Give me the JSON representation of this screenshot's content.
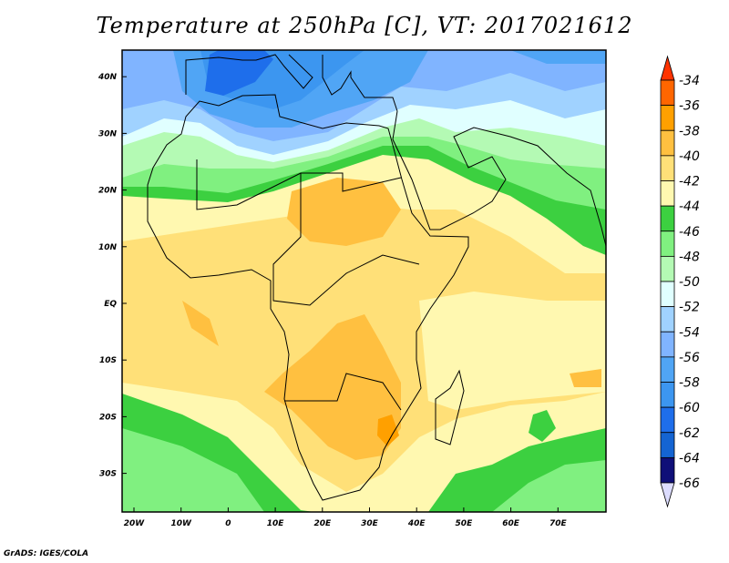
{
  "title": "Temperature at 250hPa [C], VT: 2017021612",
  "footer": "GrADS: IGES/COLA",
  "map": {
    "lat_labels": [
      {
        "text": "40N",
        "lat": 40
      },
      {
        "text": "30N",
        "lat": 30
      },
      {
        "text": "20N",
        "lat": 20
      },
      {
        "text": "10N",
        "lat": 10
      },
      {
        "text": "EQ",
        "lat": 0
      },
      {
        "text": "10S",
        "lat": -10
      },
      {
        "text": "20S",
        "lat": -20
      },
      {
        "text": "30S",
        "lat": -30
      }
    ],
    "lon_labels": [
      {
        "text": "20W",
        "lon": -20
      },
      {
        "text": "10W",
        "lon": -10
      },
      {
        "text": "0",
        "lon": 0
      },
      {
        "text": "10E",
        "lon": 10
      },
      {
        "text": "20E",
        "lon": 20
      },
      {
        "text": "30E",
        "lon": 30
      },
      {
        "text": "40E",
        "lon": 40
      },
      {
        "text": "50E",
        "lon": 50
      },
      {
        "text": "60E",
        "lon": 60
      },
      {
        "text": "70E",
        "lon": 70
      }
    ]
  },
  "colorbar": {
    "labels": [
      "-34",
      "-36",
      "-38",
      "-40",
      "-42",
      "-44",
      "-46",
      "-48",
      "-50",
      "-52",
      "-54",
      "-56",
      "-58",
      "-60",
      "-62",
      "-64",
      "-66"
    ],
    "top_triangle_color": "#ff3300",
    "bottom_triangle_color": "#dcdcff",
    "colors": [
      "#ff6600",
      "#ffa000",
      "#ffc040",
      "#ffe078",
      "#fff8b0",
      "#3cd040",
      "#80f080",
      "#b4fab4",
      "#e0ffff",
      "#a0d2ff",
      "#80b4ff",
      "#50a5f5",
      "#3c96f0",
      "#1e6eeb",
      "#1464d2",
      "#0f0f78"
    ]
  }
}
